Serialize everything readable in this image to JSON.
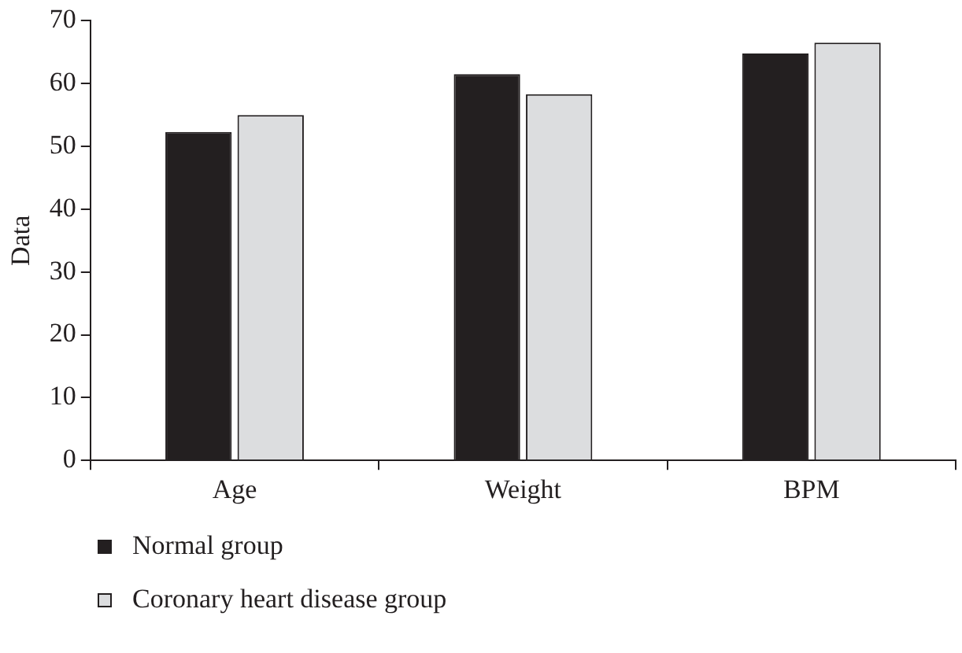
{
  "chart_data": {
    "type": "bar",
    "ylabel": "Data",
    "categories": [
      "Age",
      "Weight",
      "BPM"
    ],
    "series": [
      {
        "name": "Normal group",
        "color": "#231f20",
        "values": [
          52.3,
          61.5,
          64.8
        ]
      },
      {
        "name": "Coronary heart disease group",
        "color": "#dcdddf",
        "values": [
          55.0,
          58.3,
          66.5
        ]
      }
    ],
    "ylim": [
      0,
      70
    ],
    "yticks": [
      0,
      10,
      20,
      30,
      40,
      50,
      60,
      70
    ],
    "grid": false,
    "legend": "bottom left"
  }
}
